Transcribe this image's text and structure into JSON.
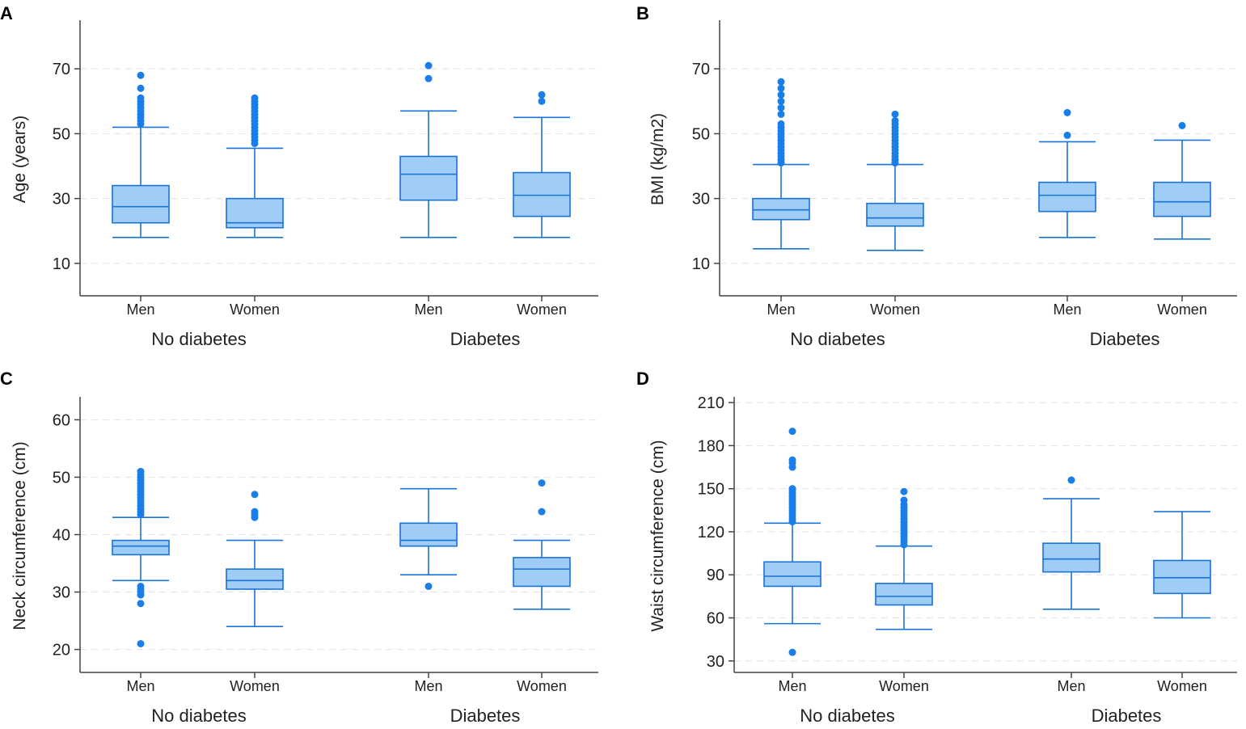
{
  "colors": {
    "box_fill": "#9fcdf5",
    "box_stroke": "#1a73d6",
    "outlier": "#1a7ee8",
    "grid": "#e2e2e2",
    "axis": "#444444"
  },
  "chart_data": [
    {
      "panel": "A",
      "type": "boxplot",
      "ylabel": "Age (years)",
      "ylim": [
        0,
        85
      ],
      "yticks": [
        10,
        30,
        50,
        70
      ],
      "groups": [
        "No diabetes",
        "Diabetes"
      ],
      "boxes": [
        {
          "category": "Men",
          "group": "No diabetes",
          "whisker_low": 18,
          "q1": 22.5,
          "median": 27.5,
          "q3": 34,
          "whisker_high": 52,
          "outliers": [
            53,
            54,
            55,
            56,
            57,
            58,
            59,
            60,
            61,
            64,
            68
          ]
        },
        {
          "category": "Women",
          "group": "No diabetes",
          "whisker_low": 18,
          "q1": 21,
          "median": 22.5,
          "q3": 30,
          "whisker_high": 45.5,
          "outliers": [
            47,
            48,
            49,
            50,
            51,
            52,
            53,
            54,
            55,
            56,
            57,
            58,
            59,
            60,
            61
          ]
        },
        {
          "category": "Men",
          "group": "Diabetes",
          "whisker_low": 18,
          "q1": 29.5,
          "median": 37.5,
          "q3": 43,
          "whisker_high": 57,
          "outliers": [
            67,
            71
          ]
        },
        {
          "category": "Women",
          "group": "Diabetes",
          "whisker_low": 18,
          "q1": 24.5,
          "median": 31,
          "q3": 38,
          "whisker_high": 55,
          "outliers": [
            60,
            62
          ]
        }
      ]
    },
    {
      "panel": "B",
      "type": "boxplot",
      "ylabel": "BMI (kg/m2)",
      "ylim": [
        0,
        85
      ],
      "yticks": [
        10,
        30,
        50,
        70
      ],
      "groups": [
        "No diabetes",
        "Diabetes"
      ],
      "boxes": [
        {
          "category": "Men",
          "group": "No diabetes",
          "whisker_low": 14.5,
          "q1": 23.5,
          "median": 26.5,
          "q3": 30,
          "whisker_high": 40.5,
          "outliers": [
            41,
            42,
            43,
            44,
            45,
            46,
            47,
            48,
            49,
            50,
            51,
            52,
            53,
            56,
            58,
            60,
            62,
            64,
            66
          ]
        },
        {
          "category": "Women",
          "group": "No diabetes",
          "whisker_low": 14,
          "q1": 21.5,
          "median": 24,
          "q3": 28.5,
          "whisker_high": 40.5,
          "outliers": [
            41,
            42,
            43,
            44,
            45,
            46,
            47,
            48,
            49,
            50,
            51,
            52,
            53,
            54,
            56
          ]
        },
        {
          "category": "Men",
          "group": "Diabetes",
          "whisker_low": 18,
          "q1": 26,
          "median": 31,
          "q3": 35,
          "whisker_high": 47.5,
          "outliers": [
            49.5,
            56.5
          ]
        },
        {
          "category": "Women",
          "group": "Diabetes",
          "whisker_low": 17.5,
          "q1": 24.5,
          "median": 29,
          "q3": 35,
          "whisker_high": 48,
          "outliers": [
            52.5
          ]
        }
      ]
    },
    {
      "panel": "C",
      "type": "boxplot",
      "ylabel": "Neck circumference (cm)",
      "ylim": [
        16,
        64
      ],
      "yticks": [
        20,
        30,
        40,
        50,
        60
      ],
      "groups": [
        "No diabetes",
        "Diabetes"
      ],
      "boxes": [
        {
          "category": "Men",
          "group": "No diabetes",
          "whisker_low": 32,
          "q1": 36.5,
          "median": 38,
          "q3": 39,
          "whisker_high": 43,
          "outliers": [
            21,
            28,
            29.5,
            30,
            30.5,
            31,
            43.5,
            44,
            44.5,
            45,
            45.5,
            46,
            46.5,
            47,
            47.5,
            48,
            48.5,
            49,
            49.5,
            50,
            50.5,
            51
          ]
        },
        {
          "category": "Women",
          "group": "No diabetes",
          "whisker_low": 24,
          "q1": 30.5,
          "median": 32,
          "q3": 34,
          "whisker_high": 39,
          "outliers": [
            43,
            43.5,
            44,
            47
          ]
        },
        {
          "category": "Men",
          "group": "Diabetes",
          "whisker_low": 33,
          "q1": 38,
          "median": 39,
          "q3": 42,
          "whisker_high": 48,
          "outliers": [
            31
          ]
        },
        {
          "category": "Women",
          "group": "Diabetes",
          "whisker_low": 27,
          "q1": 31,
          "median": 34,
          "q3": 36,
          "whisker_high": 39,
          "outliers": [
            44,
            49
          ]
        }
      ]
    },
    {
      "panel": "D",
      "type": "boxplot",
      "ylabel": "Waist circumference (cm)",
      "ylim": [
        22,
        214
      ],
      "yticks": [
        30,
        60,
        90,
        120,
        150,
        180,
        210
      ],
      "groups": [
        "No diabetes",
        "Diabetes"
      ],
      "boxes": [
        {
          "category": "Men",
          "group": "No diabetes",
          "whisker_low": 56,
          "q1": 82,
          "median": 89,
          "q3": 99,
          "whisker_high": 126,
          "outliers": [
            36,
            127,
            129,
            131,
            133,
            135,
            137,
            139,
            141,
            143,
            145,
            147,
            149,
            150,
            165,
            168,
            170,
            190
          ]
        },
        {
          "category": "Women",
          "group": "No diabetes",
          "whisker_low": 52,
          "q1": 69,
          "median": 75,
          "q3": 84,
          "whisker_high": 110,
          "outliers": [
            111,
            113,
            115,
            117,
            119,
            121,
            123,
            125,
            127,
            129,
            131,
            133,
            135,
            137,
            139,
            142,
            148
          ]
        },
        {
          "category": "Men",
          "group": "Diabetes",
          "whisker_low": 66,
          "q1": 92,
          "median": 101,
          "q3": 112,
          "whisker_high": 143,
          "outliers": [
            156
          ]
        },
        {
          "category": "Women",
          "group": "Diabetes",
          "whisker_low": 60,
          "q1": 77,
          "median": 88,
          "q3": 100,
          "whisker_high": 134,
          "outliers": []
        }
      ]
    }
  ]
}
